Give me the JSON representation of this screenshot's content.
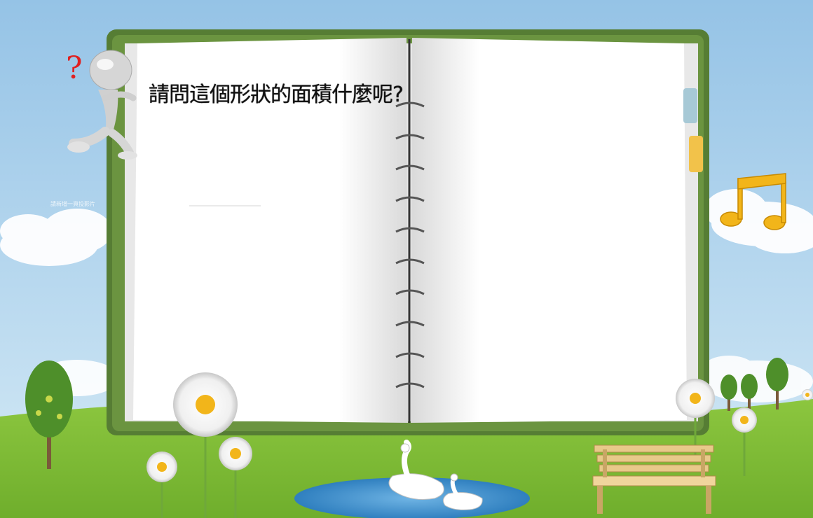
{
  "slide": {
    "question_text": "請問這個形狀的面積什麼呢?",
    "faint_text": "請新增一頁投影片"
  },
  "colors": {
    "sky_top": "#9cc7e6",
    "sky_bottom": "#cfe6f4",
    "grass": "#7fba3a",
    "notebook_cover": "#5e8a3a",
    "page": "#ffffff",
    "note_yellow": "#f2b51a",
    "pond": "#3f8fc8"
  },
  "icons": {
    "thinker": "thinking-figure-icon",
    "question_mark": "question-mark-icon",
    "music_note": "music-note-icon",
    "bench": "bench-icon",
    "swan": "swan-icon",
    "flower": "daisy-icon",
    "tree": "tree-icon"
  }
}
